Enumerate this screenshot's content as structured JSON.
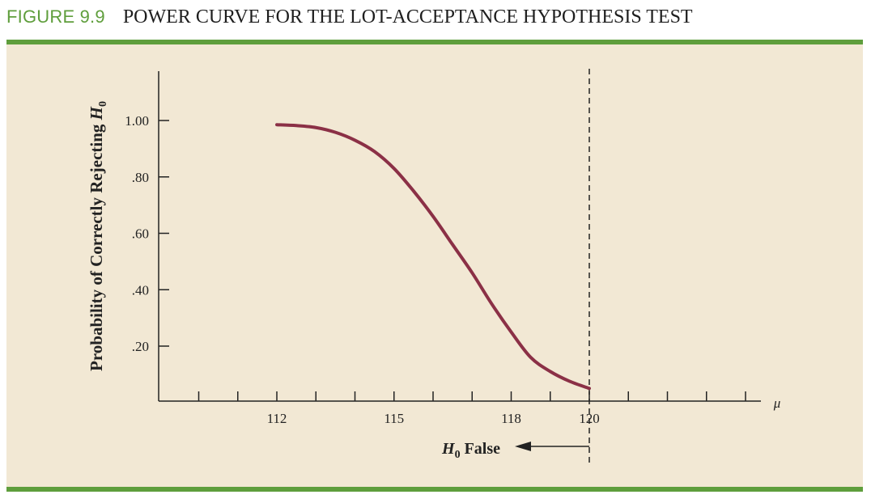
{
  "figure": {
    "number": "FIGURE 9.9",
    "title": "POWER CURVE FOR THE LOT-ACCEPTANCE HYPOTHESIS TEST",
    "accent_color": "#5f9e3c",
    "panel_color": "#f2e8d4",
    "curve_color": "#8b3046"
  },
  "chart_data": {
    "type": "line",
    "title": "POWER CURVE FOR THE LOT-ACCEPTANCE HYPOTHESIS TEST",
    "ylabel": "Probability of Correctly Rejecting H0",
    "ylabel_main": "Probability of Correctly Rejecting ",
    "ylabel_symbol": "H",
    "ylabel_sub": "0",
    "xlabel": "μ",
    "xlim": [
      109,
      125
    ],
    "ylim": [
      0,
      1.15
    ],
    "x_ticks": [
      110,
      111,
      112,
      113,
      114,
      115,
      116,
      117,
      118,
      119,
      120,
      121,
      122,
      123,
      124
    ],
    "x_tick_labels": [
      {
        "x": 112,
        "label": "112"
      },
      {
        "x": 115,
        "label": "115"
      },
      {
        "x": 118,
        "label": "118"
      },
      {
        "x": 120,
        "label": "120"
      }
    ],
    "y_ticks": [
      {
        "y": 1.0,
        "label": "1.00"
      },
      {
        "y": 0.8,
        "label": ".80"
      },
      {
        "y": 0.6,
        "label": ".60"
      },
      {
        "y": 0.4,
        "label": ".40"
      },
      {
        "y": 0.2,
        "label": ".20"
      }
    ],
    "series": [
      {
        "x": [
          112,
          112.5,
          113,
          113.5,
          114,
          114.5,
          115,
          115.5,
          116,
          116.5,
          117,
          117.5,
          118,
          118.5,
          119,
          119.5,
          120
        ],
        "values": [
          0.985,
          0.982,
          0.975,
          0.958,
          0.93,
          0.89,
          0.83,
          0.75,
          0.66,
          0.56,
          0.46,
          0.35,
          0.25,
          0.16,
          0.11,
          0.075,
          0.05
        ]
      }
    ],
    "reference_line": {
      "x": 120,
      "style": "dashed"
    },
    "annotation": {
      "text_symbol": "H",
      "text_sub": "0",
      "text_rest": " False",
      "direction": "left-arrow"
    }
  }
}
